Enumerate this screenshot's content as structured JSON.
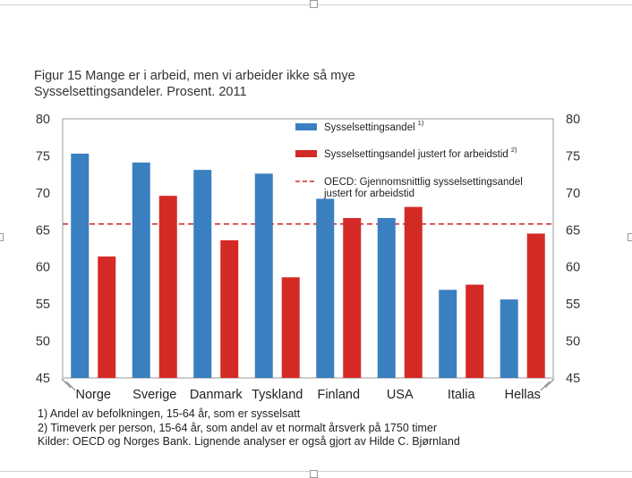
{
  "figure": {
    "title": "Figur 15 Mange er i arbeid, men vi arbeider ikke så mye",
    "subtitle": "Sysselsettingsandeler. Prosent. 2011"
  },
  "notes": [
    "1) Andel av befolkningen, 15-64 år, som er sysselsatt",
    "2) Timeverk per person, 15-64 år, som andel av et normalt årsverk på 1750 timer",
    "Kilder: OECD og Norges Bank. Lignende analyser er også gjort av Hilde C. Bjørnland"
  ],
  "chart_data": {
    "type": "bar",
    "categories": [
      "Norge",
      "Sverige",
      "Danmark",
      "Tyskland",
      "Finland",
      "USA",
      "Italia",
      "Hellas"
    ],
    "series": [
      {
        "name": "Sysselsettingsandel",
        "superscript": "1)",
        "color": "#3a7fc0",
        "values": [
          75.3,
          74.1,
          73.1,
          72.6,
          69.2,
          66.6,
          56.9,
          55.6
        ]
      },
      {
        "name": "Sysselsettingsandel justert for arbeidstid",
        "superscript": "2)",
        "color": "#d42a26",
        "values": [
          61.4,
          69.6,
          63.6,
          58.6,
          66.6,
          68.1,
          57.6,
          64.5
        ]
      }
    ],
    "reference_line": {
      "name": "OECD: Gjennomsnittlig sysselsettingsandel justert for arbeidstid",
      "name_lines": [
        "OECD: Gjennomsnittlig sysselsettingsandel",
        "justert for arbeidstid"
      ],
      "value": 65.8,
      "color": "#d42a26",
      "style": "dashed"
    },
    "ylim": [
      45,
      80
    ],
    "yticks": [
      "45",
      "50",
      "55",
      "60",
      "65",
      "70",
      "75",
      "80"
    ],
    "secondary_yaxis": true,
    "grid": false,
    "legend_position": "top-right",
    "xlabel": "",
    "ylabel": ""
  }
}
